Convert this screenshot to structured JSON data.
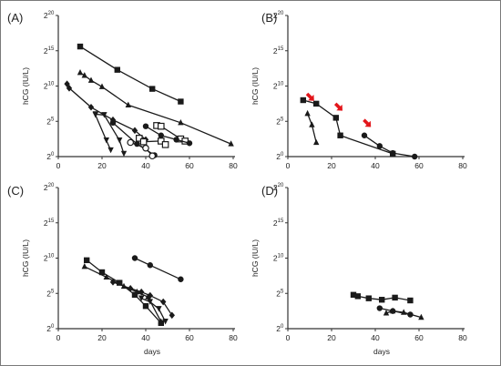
{
  "figure": {
    "colors": {
      "series": "#1a1a1a",
      "arrow": "#e3161b",
      "frame": "#7a7a7a"
    }
  },
  "chart_data": [
    {
      "panel": "(A)",
      "type": "line",
      "xlabel": "",
      "ylabel": "hCG (IU/L)",
      "xlim": [
        0,
        80
      ],
      "x_ticks": [
        0,
        20,
        40,
        60,
        80
      ],
      "y_scale": "log2",
      "ylim_exp": [
        0,
        20
      ],
      "y_ticks": [
        {
          "exp": 0,
          "label": "2"
        },
        {
          "exp": 5,
          "label": "2"
        },
        {
          "exp": 10,
          "label": "2"
        },
        {
          "exp": 15,
          "label": "2"
        },
        {
          "exp": 20,
          "label": "2"
        }
      ],
      "arrows": [],
      "series": [
        {
          "marker": "square",
          "x": [
            10,
            27,
            43,
            56
          ],
          "y_exp": [
            15.6,
            12.3,
            9.6,
            7.8
          ]
        },
        {
          "marker": "triangle",
          "x": [
            10,
            12,
            15,
            20,
            32,
            56,
            79
          ],
          "y_exp": [
            11.9,
            11.5,
            10.8,
            9.9,
            7.3,
            4.8,
            1.8
          ]
        },
        {
          "marker": "diamond",
          "x": [
            4,
            5,
            15,
            25,
            35,
            40
          ],
          "y_exp": [
            10.3,
            9.7,
            7.0,
            5.2,
            3.7,
            2.4
          ]
        },
        {
          "marker": "triangle-down",
          "x": [
            17,
            21,
            28,
            30
          ],
          "y_exp": [
            6.0,
            5.9,
            2.3,
            0.4
          ]
        },
        {
          "marker": "triangle-down",
          "x": [
            17,
            22,
            24
          ],
          "y_exp": [
            5.9,
            2.3,
            0.9
          ]
        },
        {
          "marker": "circle",
          "x": [
            25,
            36,
            44
          ],
          "y_exp": [
            4.8,
            1.8,
            0.2
          ]
        },
        {
          "marker": "square-open",
          "x": [
            37,
            39,
            47,
            49
          ],
          "y_exp": [
            2.6,
            2.1,
            2.2,
            1.7
          ]
        },
        {
          "marker": "square-open",
          "x": [
            45,
            47,
            56,
            58
          ],
          "y_exp": [
            4.4,
            4.3,
            2.5,
            2.2
          ]
        },
        {
          "marker": "circle",
          "x": [
            40,
            47,
            54,
            60
          ],
          "y_exp": [
            4.3,
            3.0,
            2.4,
            1.9
          ]
        },
        {
          "marker": "circle-open",
          "x": [
            33,
            40,
            43
          ],
          "y_exp": [
            2.0,
            1.2,
            0.1
          ]
        }
      ]
    },
    {
      "panel": "(B)",
      "type": "line",
      "xlabel": "",
      "ylabel": "hCG (IU/L)",
      "xlim": [
        0,
        80
      ],
      "x_ticks": [
        0,
        20,
        40,
        60,
        80
      ],
      "y_scale": "log2",
      "ylim_exp": [
        0,
        20
      ],
      "y_ticks": [
        {
          "exp": 0,
          "label": "2"
        },
        {
          "exp": 5,
          "label": "2"
        },
        {
          "exp": 10,
          "label": "2"
        },
        {
          "exp": 15,
          "label": "2"
        },
        {
          "exp": 20,
          "label": "2"
        }
      ],
      "arrows": [
        {
          "x": 12,
          "y_exp": 7.9
        },
        {
          "x": 25,
          "y_exp": 6.5
        },
        {
          "x": 38,
          "y_exp": 4.2
        }
      ],
      "series": [
        {
          "marker": "square",
          "x": [
            7,
            13,
            22,
            24,
            48
          ],
          "y_exp": [
            8.0,
            7.5,
            5.5,
            3.0,
            0.4
          ]
        },
        {
          "marker": "triangle",
          "x": [
            9,
            11,
            13
          ],
          "y_exp": [
            6.1,
            4.5,
            2.0
          ]
        },
        {
          "marker": "circle",
          "x": [
            35,
            42,
            48,
            58
          ],
          "y_exp": [
            3.0,
            1.5,
            0.5,
            0.0
          ]
        }
      ]
    },
    {
      "panel": "(C)",
      "type": "line",
      "xlabel": "days",
      "ylabel": "hCG (IU/L)",
      "xlim": [
        0,
        80
      ],
      "x_ticks": [
        0,
        20,
        40,
        60,
        80
      ],
      "y_scale": "log2",
      "ylim_exp": [
        0,
        20
      ],
      "y_ticks": [
        {
          "exp": 0,
          "label": "2"
        },
        {
          "exp": 5,
          "label": "2"
        },
        {
          "exp": 10,
          "label": "2"
        },
        {
          "exp": 15,
          "label": "2"
        },
        {
          "exp": 20,
          "label": "2"
        }
      ],
      "arrows": [],
      "series": [
        {
          "marker": "circle",
          "x": [
            35,
            42,
            56
          ],
          "y_exp": [
            10.0,
            9.0,
            7.0
          ]
        },
        {
          "marker": "square",
          "x": [
            13,
            20,
            28,
            35,
            40,
            47
          ],
          "y_exp": [
            9.7,
            8.0,
            6.5,
            4.8,
            3.2,
            0.8
          ]
        },
        {
          "marker": "triangle",
          "x": [
            12,
            22,
            30,
            36,
            41,
            47
          ],
          "y_exp": [
            8.8,
            7.3,
            6.0,
            5.2,
            4.5,
            1.0
          ]
        },
        {
          "marker": "diamond",
          "x": [
            25,
            33,
            38,
            42,
            48,
            52
          ],
          "y_exp": [
            6.6,
            5.7,
            5.2,
            4.7,
            3.8,
            1.9
          ]
        },
        {
          "marker": "triangle-down",
          "x": [
            38,
            42,
            46,
            49
          ],
          "y_exp": [
            4.3,
            3.8,
            2.8,
            1.0
          ]
        }
      ]
    },
    {
      "panel": "(D)",
      "type": "line",
      "xlabel": "days",
      "ylabel": "hCG (IU/L)",
      "xlim": [
        0,
        80
      ],
      "x_ticks": [
        0,
        20,
        40,
        60,
        80
      ],
      "y_scale": "log2",
      "ylim_exp": [
        0,
        20
      ],
      "y_ticks": [
        {
          "exp": 0,
          "label": "2"
        },
        {
          "exp": 5,
          "label": "2"
        },
        {
          "exp": 10,
          "label": "2"
        },
        {
          "exp": 15,
          "label": "2"
        },
        {
          "exp": 20,
          "label": "2"
        }
      ],
      "arrows": [],
      "series": [
        {
          "marker": "square",
          "x": [
            30,
            32,
            37,
            43,
            49,
            56
          ],
          "y_exp": [
            4.8,
            4.6,
            4.3,
            4.1,
            4.4,
            4.0
          ]
        },
        {
          "marker": "circle",
          "x": [
            42,
            48,
            56
          ],
          "y_exp": [
            2.9,
            2.5,
            2.0
          ]
        },
        {
          "marker": "triangle",
          "x": [
            45,
            48,
            53,
            61
          ],
          "y_exp": [
            2.2,
            2.5,
            2.3,
            1.6
          ]
        }
      ]
    }
  ]
}
